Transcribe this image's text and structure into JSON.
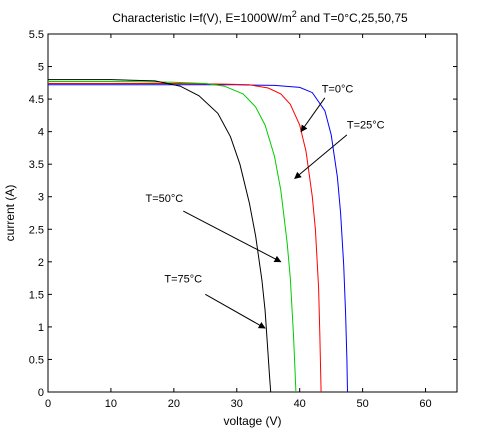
{
  "chart_data": {
    "type": "line",
    "title": "Characteristic I=f(V), E=1000W/m² and T=0°C,25,50,75",
    "title_parts": {
      "main": "Characteristic I=f(V), E=1000W/m",
      "superscript": "2",
      "tail": " and T=0°C,25,50,75"
    },
    "xlabel": "voltage (V)",
    "ylabel": "current (A)",
    "xlim": [
      0,
      65
    ],
    "ylim": [
      0,
      5.5
    ],
    "xticks": [
      0,
      10,
      20,
      30,
      40,
      50,
      60
    ],
    "xtick_labels": [
      "0",
      "10",
      "20",
      "30",
      "40",
      "50",
      "60"
    ],
    "yticks": [
      0,
      0.5,
      1,
      1.5,
      2,
      2.5,
      3,
      3.5,
      4,
      4.5,
      5,
      5.5
    ],
    "ytick_labels": [
      "0",
      "0.5",
      "1",
      "1.5",
      "2",
      "2.5",
      "3",
      "3.5",
      "4",
      "4.5",
      "5",
      "5.5"
    ],
    "grid": false,
    "series": [
      {
        "key": "t0",
        "color": "#0000ff",
        "x": [
          0,
          10,
          20,
          30,
          36,
          40,
          42,
          44,
          45,
          46,
          46.5,
          47,
          47.3,
          47.5,
          47.6
        ],
        "y": [
          4.72,
          4.72,
          4.72,
          4.72,
          4.71,
          4.68,
          4.6,
          4.32,
          3.95,
          3.3,
          2.75,
          1.95,
          1.2,
          0.5,
          0
        ]
      },
      {
        "key": "t25",
        "color": "#ff0000",
        "x": [
          0,
          10,
          20,
          28,
          32,
          35,
          37,
          38.5,
          40,
          41,
          42,
          42.5,
          43,
          43.2,
          43.4
        ],
        "y": [
          4.74,
          4.74,
          4.74,
          4.73,
          4.72,
          4.67,
          4.58,
          4.42,
          4.1,
          3.7,
          3.0,
          2.5,
          1.6,
          0.9,
          0
        ]
      },
      {
        "key": "t50",
        "color": "#00cc00",
        "x": [
          0,
          10,
          20,
          25,
          28,
          31,
          33,
          34.5,
          36,
          37,
          38,
          38.5,
          39,
          39.2,
          39.4
        ],
        "y": [
          4.77,
          4.77,
          4.76,
          4.74,
          4.7,
          4.58,
          4.38,
          4.1,
          3.62,
          3.1,
          2.3,
          1.75,
          0.9,
          0.45,
          0
        ]
      },
      {
        "key": "t75",
        "color": "#000000",
        "x": [
          0,
          10,
          17,
          21,
          24,
          27,
          29,
          30.5,
          32,
          33,
          34,
          34.5,
          35,
          35.2,
          35.4
        ],
        "y": [
          4.8,
          4.8,
          4.78,
          4.7,
          4.55,
          4.28,
          3.92,
          3.5,
          2.9,
          2.4,
          1.72,
          1.25,
          0.55,
          0.25,
          0
        ]
      }
    ],
    "annotations": [
      {
        "key": "a0",
        "text": "T=0°C",
        "text_x": 43.5,
        "text_y": 4.6,
        "tail_x": 44,
        "tail_y": 4.52,
        "head_x": 40.2,
        "head_y": 4.0
      },
      {
        "key": "a25",
        "text": "T=25°C",
        "text_x": 47.5,
        "text_y": 4.05,
        "tail_x": 47.5,
        "tail_y": 3.95,
        "head_x": 39.2,
        "head_y": 3.28
      },
      {
        "key": "a50",
        "text": "T=50°C",
        "text_x": 15.5,
        "text_y": 2.92,
        "tail_x": 21.5,
        "tail_y": 2.78,
        "head_x": 37.0,
        "head_y": 2.0
      },
      {
        "key": "a75",
        "text": "T=75°C",
        "text_x": 18.5,
        "text_y": 1.68,
        "tail_x": 25,
        "tail_y": 1.5,
        "head_x": 34.5,
        "head_y": 0.98
      }
    ]
  }
}
